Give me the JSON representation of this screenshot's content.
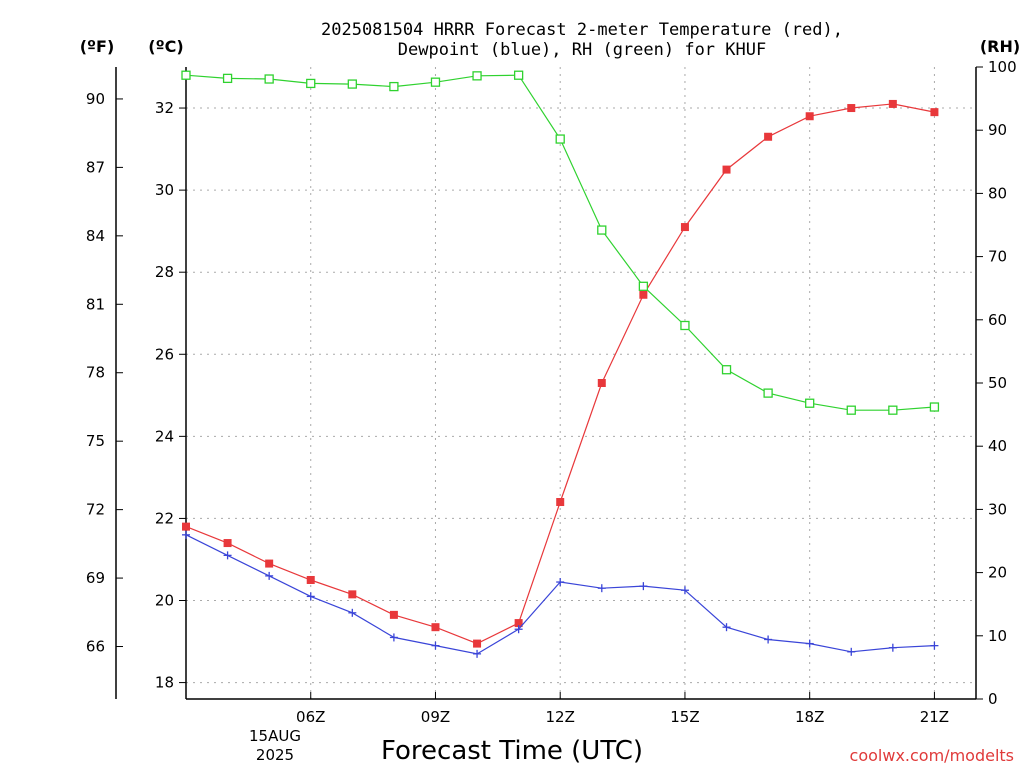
{
  "title_line1": "2025081504 HRRR Forecast 2-meter Temperature (red),",
  "title_line2": "Dewpoint (blue), RH (green) for KHUF",
  "unit_f": "(ºF)",
  "unit_c": "(ºC)",
  "unit_rh": "(RH)",
  "xlabel": "Forecast Time (UTC)",
  "date_day": "15AUG",
  "date_year": "2025",
  "credit": "coolwx.com/modelts",
  "colors": {
    "temperature": "#e8383b",
    "dewpoint": "#3a45d8",
    "rh": "#2fd22f",
    "credit": "#e03a3a"
  },
  "chart_data": {
    "type": "line",
    "x": [
      3,
      4,
      5,
      6,
      7,
      8,
      9,
      10,
      11,
      12,
      13,
      14,
      15,
      16,
      17,
      18,
      19,
      20,
      21,
      22
    ],
    "xlim": [
      3,
      22
    ],
    "xticks": [
      6,
      9,
      12,
      15,
      18,
      21
    ],
    "xtick_labels": [
      "06Z",
      "09Z",
      "12Z",
      "15Z",
      "18Z",
      "21Z"
    ],
    "ylim_c": [
      17.6,
      33.0
    ],
    "yticks_c": [
      18,
      20,
      22,
      24,
      26,
      28,
      30,
      32
    ],
    "ylim_f": [
      63.7,
      91.4
    ],
    "yticks_f": [
      66,
      69,
      72,
      75,
      78,
      81,
      84,
      87,
      90
    ],
    "ylim_rh": [
      0,
      100
    ],
    "yticks_rh": [
      0,
      10,
      20,
      30,
      40,
      50,
      60,
      70,
      80,
      90,
      100
    ],
    "grid": true,
    "series": [
      {
        "name": "Temperature",
        "axis": "c",
        "marker": "filled-square",
        "values": [
          21.8,
          21.4,
          20.9,
          20.5,
          20.15,
          19.65,
          19.35,
          18.95,
          19.45,
          22.4,
          25.3,
          27.45,
          29.1,
          30.5,
          31.3,
          31.8,
          32.0,
          32.1,
          31.9,
          null
        ]
      },
      {
        "name": "Dewpoint",
        "axis": "c",
        "marker": "plus",
        "values": [
          21.6,
          21.1,
          20.6,
          20.1,
          19.7,
          19.1,
          18.9,
          18.7,
          19.3,
          20.45,
          20.3,
          20.35,
          20.25,
          19.35,
          19.05,
          18.95,
          18.75,
          18.85,
          18.9,
          null
        ]
      },
      {
        "name": "RH",
        "axis": "rh",
        "marker": "open-square",
        "values": [
          98.7,
          98.2,
          98.1,
          97.4,
          97.3,
          96.9,
          97.6,
          98.6,
          98.7,
          88.6,
          74.2,
          65.3,
          59.1,
          52.1,
          48.4,
          46.8,
          45.7,
          45.7,
          46.2,
          null
        ]
      }
    ]
  }
}
